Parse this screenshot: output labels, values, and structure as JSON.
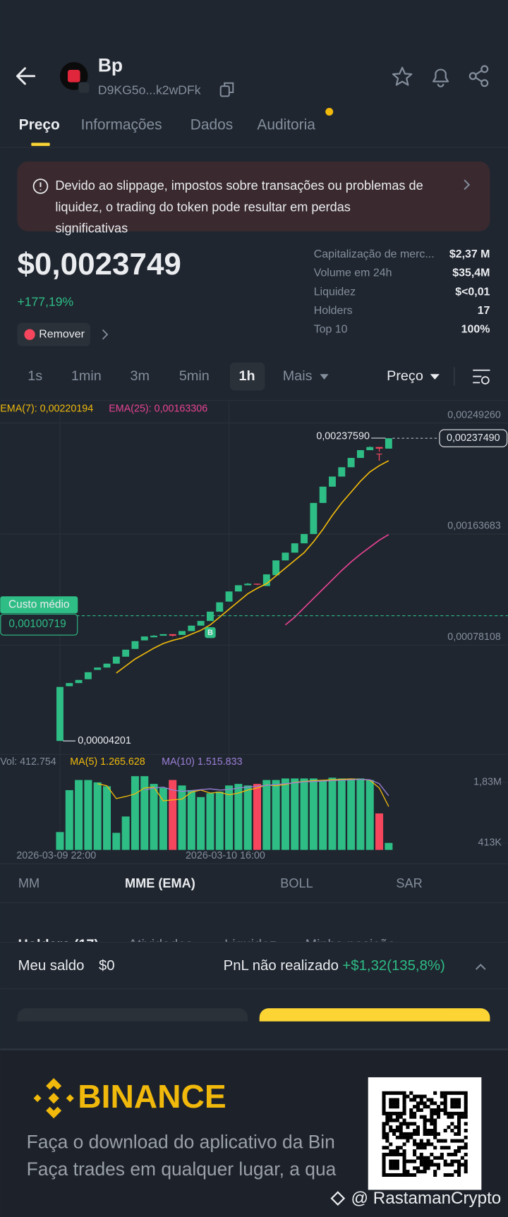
{
  "header": {
    "title": "Bp",
    "address": "D9KG5o...k2wDFk"
  },
  "tabs": [
    "Preço",
    "Informações",
    "Dados",
    "Auditoria"
  ],
  "warning": [
    "Devido ao slippage, impostos sobre transações ou problemas de",
    "liquidez, o trading do token pode resultar em perdas",
    "significativas"
  ],
  "token": {
    "price": "$0,0023749",
    "change": "+177,19%",
    "remove": "Remover"
  },
  "stats": [
    {
      "label": "Capitalização de merc...",
      "value": "$2,37 M"
    },
    {
      "label": "Volume em 24h",
      "value": "$35,4M"
    },
    {
      "label": "Liquidez",
      "value": "$<0,01"
    },
    {
      "label": "Holders",
      "value": "17"
    },
    {
      "label": "Top 10",
      "value": "100%"
    }
  ],
  "intervals": [
    "1s",
    "1min",
    "3m",
    "5min",
    "1h",
    "Mais"
  ],
  "price_selector": "Preço",
  "chart_data": {
    "type": "candlestick",
    "categories": [
      "2026-03-09 22:00",
      null,
      null,
      null,
      null,
      null,
      null,
      null,
      null,
      null,
      null,
      null,
      null,
      null,
      null,
      null,
      null,
      null,
      "2026-03-10 16:00",
      null,
      null,
      null,
      null,
      null,
      null,
      null,
      null,
      null,
      null,
      null,
      null,
      null,
      null,
      null,
      null,
      null
    ],
    "open": [
      4.201e-05,
      0.00046402,
      0.00048796,
      0.00051788,
      0.00058969,
      0.00060764,
      0.00063756,
      0.00069142,
      0.00075126,
      0.00081708,
      0.00084102,
      0.00085298,
      0.00086495,
      0.00085897,
      0.00088889,
      0.00093078,
      0.00096668,
      0.00103849,
      0.00111628,
      0.00119407,
      0.00124194,
      0.00125391,
      0.00123596,
      0.00131974,
      0.00143343,
      0.00149327,
      0.00156508,
      0.00163689,
      0.00187625,
      0.00200191,
      0.0020797,
      0.00215151,
      0.00222332,
      0.00228316,
      0.0023071,
      0.00229513
    ],
    "high": [
      0.00045804,
      0.00048796,
      0.0005119,
      0.00057174,
      0.00060764,
      0.00063756,
      0.00069142,
      0.00074527,
      0.0008111,
      0.000847,
      0.00085897,
      0.00086495,
      0.00086495,
      0.00088889,
      0.00093078,
      0.00096668,
      0.00103849,
      0.0011103,
      0.00119407,
      0.00124194,
      0.0012599,
      0.00125391,
      0.00132572,
      0.00143343,
      0.00149327,
      0.00156508,
      0.00163689,
      0.00187625,
      0.00200191,
      0.0020797,
      0.00215151,
      0.00222332,
      0.00228316,
      0.00231308,
      0.0023071,
      0.0023759
    ],
    "low": [
      4.201e-05,
      0.00046402,
      0.00048796,
      0.00051788,
      0.00058969,
      0.00060764,
      0.00063756,
      0.00069142,
      0.00075126,
      0.00081708,
      0.00084102,
      0.00085298,
      0.000847,
      0.00085897,
      0.00088889,
      0.00093078,
      0.00096668,
      0.00103849,
      0.00111628,
      0.00119407,
      0.00124194,
      0.00124194,
      0.00123596,
      0.00131974,
      0.00143343,
      0.00149327,
      0.00156508,
      0.00163689,
      0.00187625,
      0.00200191,
      0.0020797,
      0.00215151,
      0.00222332,
      0.00228316,
      0.0022712,
      0.00229513
    ],
    "close": [
      0.00045804,
      0.00048796,
      0.0005119,
      0.00057174,
      0.00060764,
      0.00063756,
      0.00069142,
      0.00074527,
      0.0008111,
      0.000847,
      0.00085298,
      0.00086495,
      0.00085298,
      0.00088889,
      0.00093078,
      0.00096668,
      0.00103849,
      0.0011103,
      0.00119407,
      0.00124194,
      0.00125391,
      0.00124793,
      0.00132572,
      0.00143343,
      0.00149327,
      0.00156508,
      0.00163689,
      0.00187625,
      0.00200191,
      0.0020797,
      0.00215151,
      0.00222332,
      0.00228316,
      0.0023071,
      0.00229513,
      0.0023749
    ],
    "up_color": "#2ebd85",
    "down_color": "#f6465d",
    "ylim": [
      -5e-05,
      0.00266
    ],
    "yticks": [
      {
        "value": 0.0024926,
        "label": "0,00249260"
      },
      {
        "value": 0.00163683,
        "label": "0,00163683"
      },
      {
        "value": 0.00078108,
        "label": "0,00078108"
      }
    ],
    "grid": true,
    "series": [
      {
        "name": "EMA(7): 0,00220194",
        "color": "#f0b90b",
        "values": [
          null,
          null,
          null,
          null,
          null,
          null,
          0.00056575,
          0.00061961,
          0.00067346,
          0.00071535,
          0.00075724,
          0.00079314,
          0.00081708,
          0.00083503,
          0.00086495,
          0.00089487,
          0.00093676,
          0.0009966,
          0.00105644,
          0.00111628,
          0.00117612,
          0.00121801,
          0.00125391,
          0.00131375,
          0.00137359,
          0.00143343,
          0.00149327,
          0.00157705,
          0.00167279,
          0.0017805,
          0.00187625,
          0.00196002,
          0.0020438,
          0.00211561,
          0.00216348,
          0.00220194
        ]
      },
      {
        "name": "EMA(25): 0,00163306",
        "color": "#e84393",
        "values": [
          null,
          null,
          null,
          null,
          null,
          null,
          null,
          null,
          null,
          null,
          null,
          null,
          null,
          null,
          null,
          null,
          null,
          null,
          null,
          null,
          null,
          null,
          null,
          null,
          0.00093676,
          0.0009966,
          0.00106841,
          0.00114022,
          0.00121202,
          0.00128383,
          0.00135564,
          0.00142146,
          0.0014813,
          0.00153516,
          0.00158902,
          0.00163306
        ]
      }
    ],
    "high_label": {
      "value": 0.0023759,
      "label": "0,00237590"
    },
    "low_label": {
      "value": 4.201e-05,
      "label": "0,00004201"
    },
    "last_price": {
      "value": 0.0023749,
      "label": "0,00237490"
    },
    "avg_cost": {
      "name": "Custo médio",
      "value": 0.00100719,
      "label": "0,00100719"
    },
    "markers": [
      "B",
      "T"
    ],
    "volume": {
      "label": "Vol: 412.754",
      "values": [
        667000,
        1648000,
        1885000,
        1885000,
        1830000,
        1739000,
        649000,
        1031000,
        1975000,
        1975000,
        1794000,
        1703000,
        1885000,
        1757000,
        1648000,
        1485000,
        1576000,
        1612000,
        1757000,
        1794000,
        1757000,
        1794000,
        1885000,
        1885000,
        1921000,
        1921000,
        1921000,
        1921000,
        1885000,
        1939000,
        1921000,
        1921000,
        1921000,
        1885000,
        1103000,
        412754
      ],
      "ylim": [
        249500,
        2429500
      ],
      "yticks": [
        {
          "value": 1830000,
          "label": "1,83M"
        },
        {
          "value": 413000,
          "label": "413K"
        }
      ],
      "series": [
        {
          "name": "MA(5) 1.265.628",
          "color": "#f0b90b",
          "values": [
            null,
            null,
            null,
            null,
            1800000,
            1750000,
            1450000,
            1500000,
            1560000,
            1700000,
            1720000,
            1400000,
            1420000,
            1440000,
            1600000,
            1650000,
            1580000,
            1600000,
            1540000,
            1580000,
            1650000,
            1700000,
            1770000,
            1750000,
            1780000,
            1830000,
            1850000,
            1870000,
            1880000,
            1890000,
            1900000,
            1910000,
            1900000,
            1880000,
            1700000,
            1265628
          ]
        },
        {
          "name": "MA(10) 1.515.833",
          "color": "#9c7fd6",
          "values": [
            null,
            null,
            null,
            null,
            null,
            null,
            null,
            null,
            null,
            1650000,
            1700000,
            1720000,
            1650000,
            1620000,
            1640000,
            1660000,
            1680000,
            1650000,
            1660000,
            1700000,
            1720000,
            1740000,
            1760000,
            1780000,
            1800000,
            1820000,
            1840000,
            1850000,
            1860000,
            1870000,
            1880000,
            1890000,
            1900000,
            1890000,
            1800000,
            1515833
          ]
        }
      ]
    }
  },
  "indicators": [
    "MM",
    "MME (EMA)",
    "BOLL",
    "SAR"
  ],
  "bottom_tabs": [
    "Holders (17)",
    "Atividades",
    "Liquidez",
    "Minha posição"
  ],
  "balance": {
    "label": "Meu saldo",
    "value": "$0",
    "pnl_label": "PnL não realizado",
    "pnl_value": "+$1,32(135,8%)"
  },
  "footer": {
    "brand": "BINANCE",
    "line1": "Faça o download do aplicativo da Bin",
    "line2": "Faça trades em qualquer lugar, a qua",
    "watermark": "@ RastamanCrypto"
  }
}
